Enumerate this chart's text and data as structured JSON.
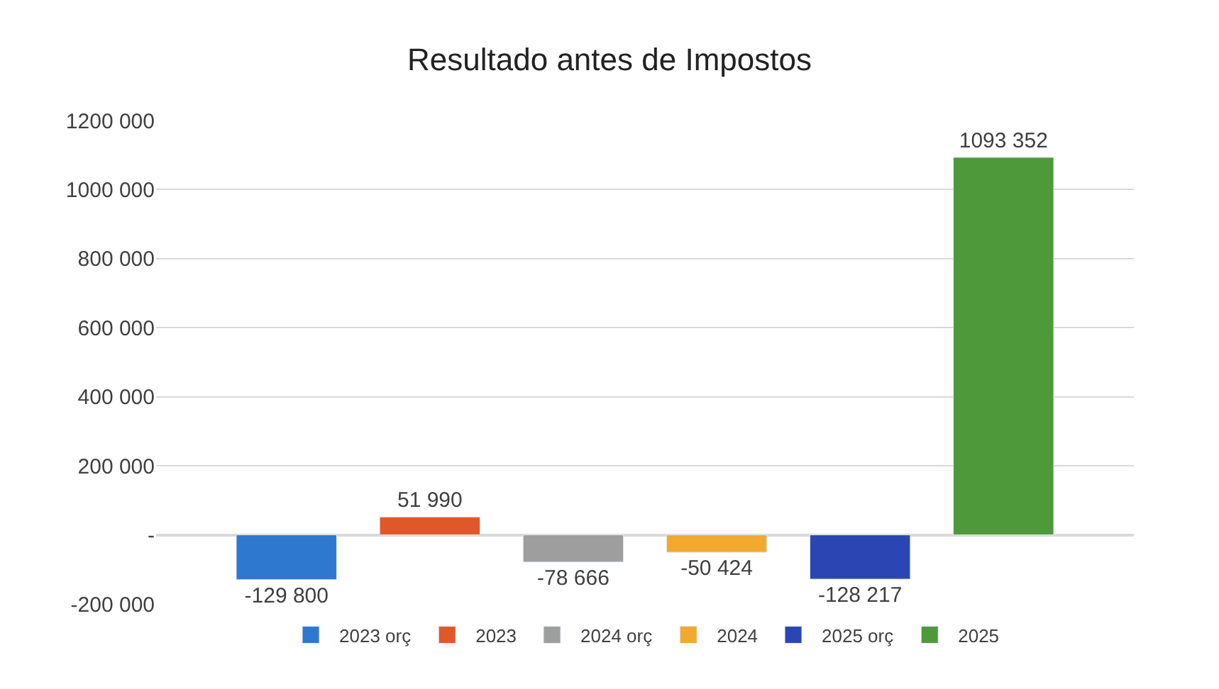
{
  "chart_data": {
    "type": "bar",
    "title": "Resultado antes de Impostos",
    "categories": [
      null
    ],
    "series": [
      {
        "name": "2023 orç",
        "color": "#2f78d0",
        "values": [
          -129800
        ],
        "value_labels": [
          "-129 800"
        ]
      },
      {
        "name": "2023",
        "color": "#e0582a",
        "values": [
          51990
        ],
        "value_labels": [
          "51 990"
        ]
      },
      {
        "name": "2024 orç",
        "color": "#9e9e9e",
        "values": [
          -78666
        ],
        "value_labels": [
          "-78 666"
        ]
      },
      {
        "name": "2024",
        "color": "#f2a92e",
        "values": [
          -50424
        ],
        "value_labels": [
          "-50 424"
        ]
      },
      {
        "name": "2025 orç",
        "color": "#2b46b3",
        "values": [
          -128217
        ],
        "value_labels": [
          "-128 217"
        ]
      },
      {
        "name": "2025",
        "color": "#4e9a3a",
        "values": [
          1093352
        ],
        "value_labels": [
          "1093 352"
        ]
      }
    ],
    "ylim": [
      -200000,
      1200000
    ],
    "yticks": [
      {
        "value": -200000,
        "label": "-200 000"
      },
      {
        "value": 0,
        "label": "-"
      },
      {
        "value": 200000,
        "label": "200 000"
      },
      {
        "value": 400000,
        "label": "400 000"
      },
      {
        "value": 600000,
        "label": "600 000"
      },
      {
        "value": 800000,
        "label": "800 000"
      },
      {
        "value": 1000000,
        "label": "1000 000"
      },
      {
        "value": 1200000,
        "label": "1200 000"
      }
    ],
    "grid": "y",
    "legend": "bottom"
  }
}
